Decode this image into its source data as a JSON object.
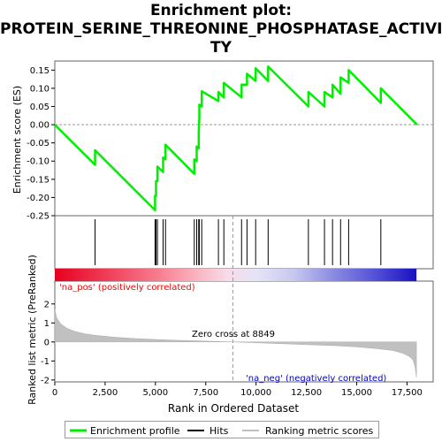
{
  "title_lines": [
    "Enrichment plot:",
    "PROTEIN_SERINE_THREONINE_PHOSPHATASE_ACTIVI",
    "TY"
  ],
  "chart_data": {
    "type": "line",
    "title": "Enrichment plot: PROTEIN_SERINE_THREONINE_PHOSPHATASE_ACTIVITY",
    "xlabel": "Rank in Ordered Dataset",
    "x_ticks": [
      "0",
      "2,500",
      "5,000",
      "7,500",
      "10,000",
      "12,500",
      "15,000",
      "17,500"
    ],
    "x_tick_values": [
      0,
      2500,
      5000,
      7500,
      10000,
      12500,
      15000,
      17500
    ],
    "xlim": [
      0,
      18800
    ],
    "top_panel": {
      "ylabel": "Enrichment score (ES)",
      "ylim": [
        -0.25,
        0.175
      ],
      "y_ticks": [
        "-0.25",
        "-0.20",
        "-0.15",
        "-0.10",
        "-0.05",
        "0.00",
        "0.05",
        "0.10",
        "0.15"
      ],
      "y_tick_values": [
        -0.25,
        -0.2,
        -0.15,
        -0.1,
        -0.05,
        0.0,
        0.05,
        0.1,
        0.15
      ],
      "series": [
        {
          "name": "Enrichment profile",
          "color": "#00ee00",
          "x": [
            0,
            2000,
            2000,
            4980,
            4980,
            5030,
            5030,
            5100,
            5100,
            5380,
            5380,
            5500,
            5500,
            6930,
            6930,
            7050,
            7050,
            7150,
            7150,
            7180,
            7180,
            7300,
            7300,
            8130,
            8130,
            8400,
            8400,
            9280,
            9280,
            9550,
            9550,
            9980,
            9980,
            10600,
            10600,
            12600,
            12600,
            13400,
            13400,
            13800,
            13800,
            14200,
            14200,
            14600,
            14600,
            16200,
            16200,
            18000
          ],
          "y": [
            0.0,
            -0.11,
            -0.07,
            -0.235,
            -0.195,
            -0.195,
            -0.155,
            -0.155,
            -0.115,
            -0.13,
            -0.09,
            -0.095,
            -0.055,
            -0.135,
            -0.095,
            -0.1,
            -0.06,
            -0.065,
            -0.02,
            0.02,
            0.055,
            0.05,
            0.092,
            0.065,
            0.09,
            0.075,
            0.115,
            0.075,
            0.11,
            0.11,
            0.14,
            0.12,
            0.155,
            0.12,
            0.16,
            0.05,
            0.09,
            0.05,
            0.09,
            0.075,
            0.11,
            0.085,
            0.13,
            0.115,
            0.15,
            0.06,
            0.1,
            0.0
          ]
        }
      ]
    },
    "hits": {
      "name": "Hits",
      "x": [
        2000,
        4980,
        5030,
        5100,
        5380,
        5500,
        6930,
        7050,
        7150,
        7180,
        7300,
        8130,
        8400,
        9280,
        9550,
        9980,
        10600,
        12600,
        13400,
        13800,
        14200,
        14600,
        16200
      ]
    },
    "bottom_panel": {
      "ylabel": "Ranked list metric (PreRanked)",
      "ylim": [
        -2.1,
        3.2
      ],
      "y_ticks": [
        "-2",
        "-1",
        "0",
        "1",
        "2"
      ],
      "y_tick_values": [
        -2,
        -1,
        0,
        1,
        2
      ],
      "series_name": "Ranking metric scores",
      "color": "#c0c0c0",
      "x": [
        0,
        100,
        300,
        600,
        1000,
        1500,
        2000,
        3000,
        4000,
        5000,
        6000,
        7000,
        8000,
        8849,
        10000,
        11000,
        12000,
        13000,
        14000,
        15000,
        16000,
        16800,
        17300,
        17600,
        17800,
        17900,
        17970
      ],
      "y": [
        1.7,
        1.25,
        0.95,
        0.72,
        0.55,
        0.43,
        0.35,
        0.25,
        0.18,
        0.13,
        0.09,
        0.06,
        0.03,
        0.0,
        -0.04,
        -0.08,
        -0.12,
        -0.16,
        -0.2,
        -0.26,
        -0.35,
        -0.45,
        -0.6,
        -0.75,
        -0.95,
        -1.3,
        -1.85
      ]
    },
    "zero_cross": {
      "x": 8849,
      "label": "Zero cross at 8849"
    },
    "pos_label": "'na_pos' (positively correlated)",
    "neg_label": "'na_neg' (negatively correlated)",
    "legend": {
      "position": "bottom",
      "items": [
        {
          "label": "Enrichment profile",
          "color": "#00ee00"
        },
        {
          "label": "Hits",
          "color": "#000000"
        },
        {
          "label": "Ranking metric scores",
          "color": "#c0c0c0"
        }
      ]
    },
    "colors": {
      "pos_label": "#ff0000",
      "neg_label": "#0000cc"
    }
  }
}
